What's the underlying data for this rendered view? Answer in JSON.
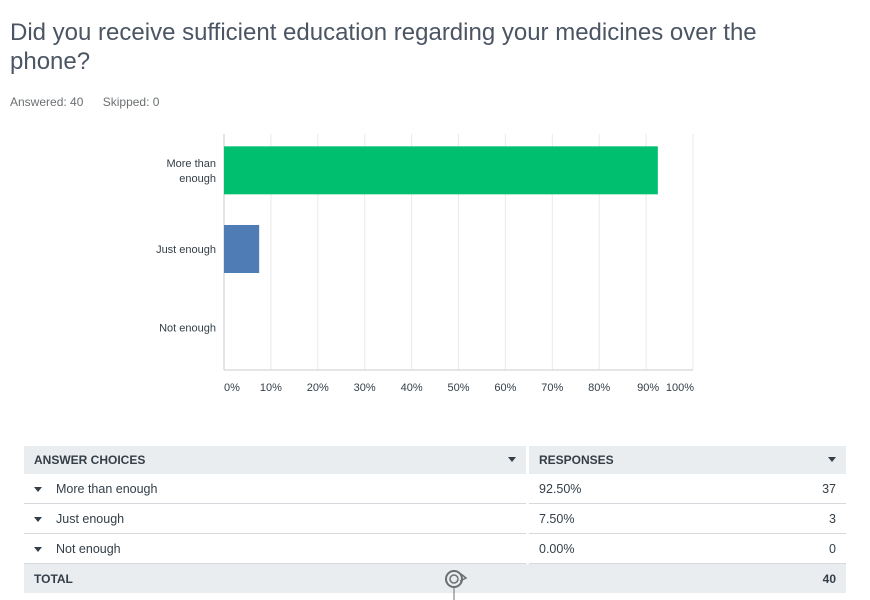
{
  "question": {
    "title": "Did you receive sufficient education regarding your medicines over the phone?",
    "answered": "Answered: 40",
    "skipped": "Skipped: 0"
  },
  "chart_data": {
    "type": "bar",
    "orientation": "horizontal",
    "categories": [
      "More than enough",
      "Just enough",
      "Not enough"
    ],
    "values": [
      92.5,
      7.5,
      0
    ],
    "colors": [
      "#00bf6f",
      "#507cb6",
      "#6bc8cd"
    ],
    "xlim": [
      0,
      100
    ],
    "x_ticks": [
      "0%",
      "10%",
      "20%",
      "30%",
      "40%",
      "50%",
      "60%",
      "70%",
      "80%",
      "90%",
      "100%"
    ],
    "grid": true
  },
  "table": {
    "headers": {
      "choice": "ANSWER CHOICES",
      "responses": "RESPONSES"
    },
    "rows": [
      {
        "choice": "More than enough",
        "pct": "92.50%",
        "count": "37"
      },
      {
        "choice": "Just enough",
        "pct": "7.50%",
        "count": "3"
      },
      {
        "choice": "Not enough",
        "pct": "0.00%",
        "count": "0"
      }
    ],
    "total": {
      "label": "TOTAL",
      "count": "40"
    }
  },
  "cursor": {
    "icon": "loading-cursor-icon"
  }
}
